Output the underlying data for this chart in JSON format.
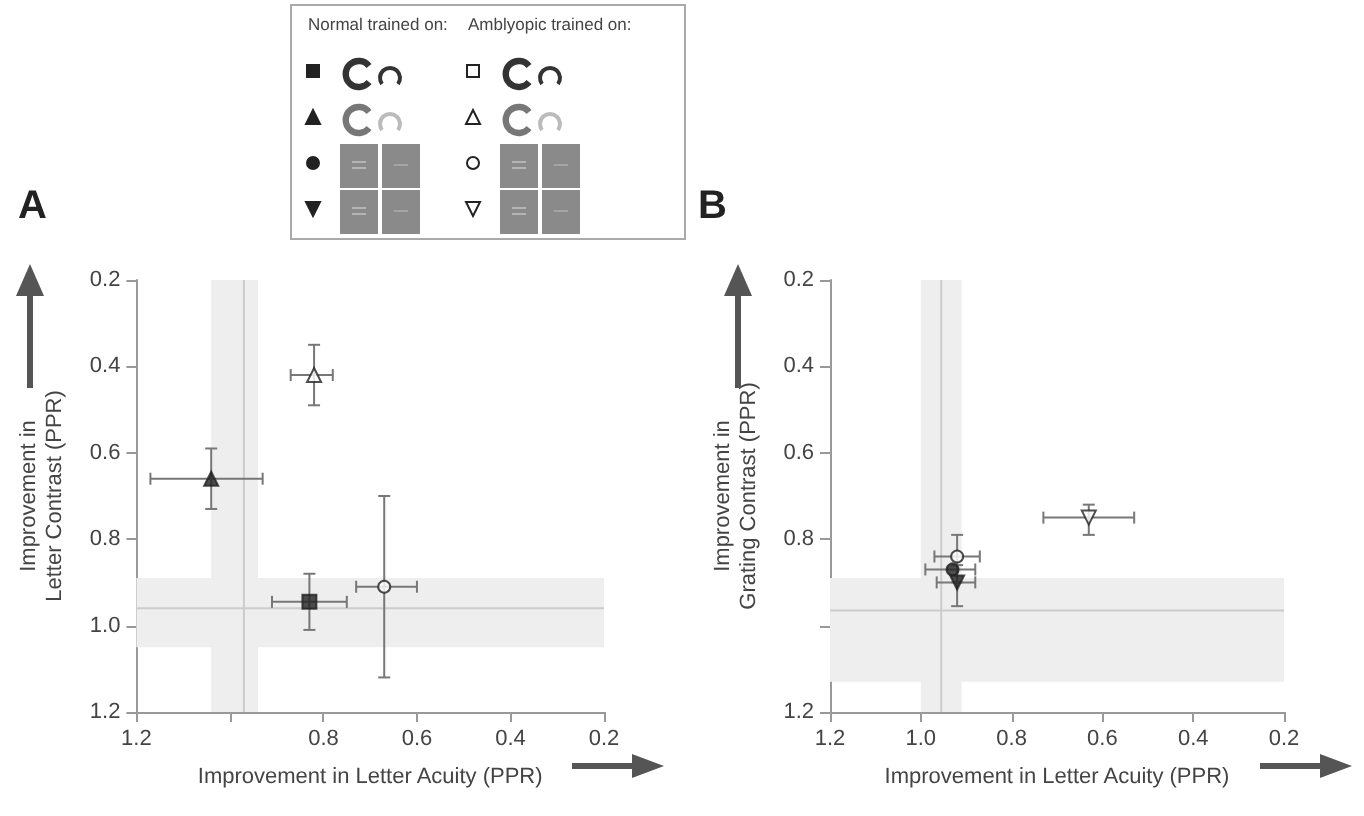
{
  "chart_data": [
    {
      "type": "other",
      "annotations": [
        "Normal trained on:",
        "Amblyopic trained on:"
      ]
    },
    {
      "type": "scatter",
      "title": "A",
      "xlabel": "Improvement in Letter Acuity (PPR)",
      "ylabel": "Improvement in\nLetter Contrast (PPR)",
      "xlim": [
        1.2,
        0.2
      ],
      "ylim": [
        1.2,
        0.2
      ],
      "xticks": [
        1.2,
        {
          "value": 1,
          "label": null
        },
        0.8,
        0.6,
        0.4,
        0.2
      ],
      "yticks": [
        0.2,
        0.4,
        0.6,
        0.8,
        {
          "value": 1,
          "label": "1.0"
        },
        1.2
      ],
      "grid": false,
      "bands": [
        {
          "axis": "x",
          "from": 0.94,
          "to": 1.04,
          "color": "#eeeeee"
        },
        {
          "axis": "y",
          "from": 0.89,
          "to": 1.05,
          "color": "#eeeeee"
        }
      ],
      "ref_lines": [
        {
          "axis": "x",
          "value": 0.97,
          "color": "#cccccc"
        },
        {
          "axis": "y",
          "value": 0.96,
          "color": "#cccccc"
        }
      ],
      "series": [
        {
          "marker": "square",
          "color": "#222222",
          "x": [
            0.83
          ],
          "values": [
            0.945
          ],
          "xerrors": [
            [
              0.75,
              0.91
            ]
          ],
          "errors": [
            [
              0.88,
              1.01
            ]
          ]
        },
        {
          "marker": "triangle",
          "color": "#222222",
          "x": [
            1.04
          ],
          "values": [
            0.66
          ],
          "xerrors": [
            [
              0.93,
              1.17
            ]
          ],
          "errors": [
            [
              0.59,
              0.73
            ]
          ]
        },
        {
          "marker": "triangle",
          "color": "#ffffff",
          "x": [
            0.82
          ],
          "values": [
            0.42
          ],
          "xerrors": [
            [
              0.78,
              0.87
            ]
          ],
          "errors": [
            [
              0.35,
              0.49
            ]
          ]
        },
        {
          "marker": "circle",
          "color": "#ffffff",
          "x": [
            0.67
          ],
          "values": [
            0.91
          ],
          "xerrors": [
            [
              0.6,
              0.73
            ]
          ],
          "errors": [
            [
              0.7,
              1.12
            ]
          ]
        }
      ]
    },
    {
      "type": "scatter",
      "title": "B",
      "xlabel": "Improvement in Letter Acuity (PPR)",
      "ylabel": "Improvement in\nGrating Contrast (PPR)",
      "xlim": [
        1.2,
        0.2
      ],
      "ylim": [
        1.2,
        0.2
      ],
      "xticks": [
        1.2,
        {
          "value": 1,
          "label": "1.0"
        },
        0.8,
        0.6,
        0.4,
        0.2
      ],
      "yticks": [
        0.2,
        0.4,
        0.6,
        0.8,
        {
          "value": 1,
          "label": null
        },
        1.2
      ],
      "grid": false,
      "bands": [
        {
          "axis": "x",
          "from": 0.91,
          "to": 1.0,
          "color": "#eeeeee"
        },
        {
          "axis": "y",
          "from": 0.89,
          "to": 1.13,
          "color": "#eeeeee"
        }
      ],
      "ref_lines": [
        {
          "axis": "x",
          "value": 0.955,
          "color": "#cccccc"
        },
        {
          "axis": "y",
          "value": 0.965,
          "color": "#cccccc"
        }
      ],
      "series": [
        {
          "marker": "circle",
          "color": "#222222",
          "x": [
            0.93
          ],
          "values": [
            0.87
          ],
          "xerrors": [
            [
              0.88,
              0.99
            ]
          ],
          "errors": [
            null
          ]
        },
        {
          "marker": "triangle-down",
          "color": "#222222",
          "x": [
            0.92
          ],
          "values": [
            0.9
          ],
          "xerrors": [
            [
              0.88,
              0.965
            ]
          ],
          "errors": [
            [
              0.86,
              0.955
            ]
          ]
        },
        {
          "marker": "circle",
          "color": "#ffffff",
          "x": [
            0.92
          ],
          "values": [
            0.84
          ],
          "xerrors": [
            [
              0.87,
              0.97
            ]
          ],
          "errors": [
            [
              0.79,
              0.9
            ]
          ]
        },
        {
          "marker": "triangle-down",
          "color": "#ffffff",
          "x": [
            0.63
          ],
          "values": [
            0.75
          ],
          "xerrors": [
            [
              0.53,
              0.73
            ]
          ],
          "errors": [
            [
              0.72,
              0.79
            ]
          ]
        }
      ]
    }
  ]
}
